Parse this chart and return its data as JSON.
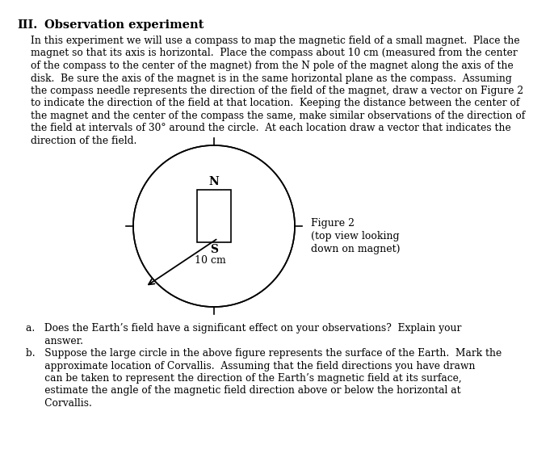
{
  "title": "III.    Observation experiment",
  "body_lines": [
    "In this experiment we will use a compass to map the magnetic field of a small magnet.  Place the",
    "magnet so that its axis is horizontal.  Place the compass about 10 cm (measured from the center",
    "of the compass to the center of the magnet) from the N pole of the magnet along the axis of the",
    "disk.  Be sure the axis of the magnet is in the same horizontal plane as the compass.  Assuming",
    "the compass needle represents the direction of the field of the magnet, draw a vector on Figure 2",
    "to indicate the direction of the field at that location.  Keeping the distance between the center of",
    "the magnet and the center of the compass the same, make similar observations of the direction of",
    "the field at intervals of 30° around the circle.  At each location draw a vector that indicates the",
    "direction of the field."
  ],
  "qa_lines": [
    "a.   Does the Earth’s field have a significant effect on your observations?  Explain your",
    "      answer.",
    "b.   Suppose the large circle in the above figure represents the surface of the Earth.  Mark the",
    "      approximate location of Corvallis.  Assuming that the field directions you have drawn",
    "      can be taken to represent the direction of the Earth’s magnetic field at its surface,",
    "      estimate the angle of the magnetic field direction above or below the horizontal at",
    "      Corvallis."
  ],
  "fig2_line1": "Figure 2",
  "fig2_line2": "(top view looking",
  "fig2_line3": "down on magnet)",
  "background_color": "#ffffff",
  "text_color": "#000000"
}
